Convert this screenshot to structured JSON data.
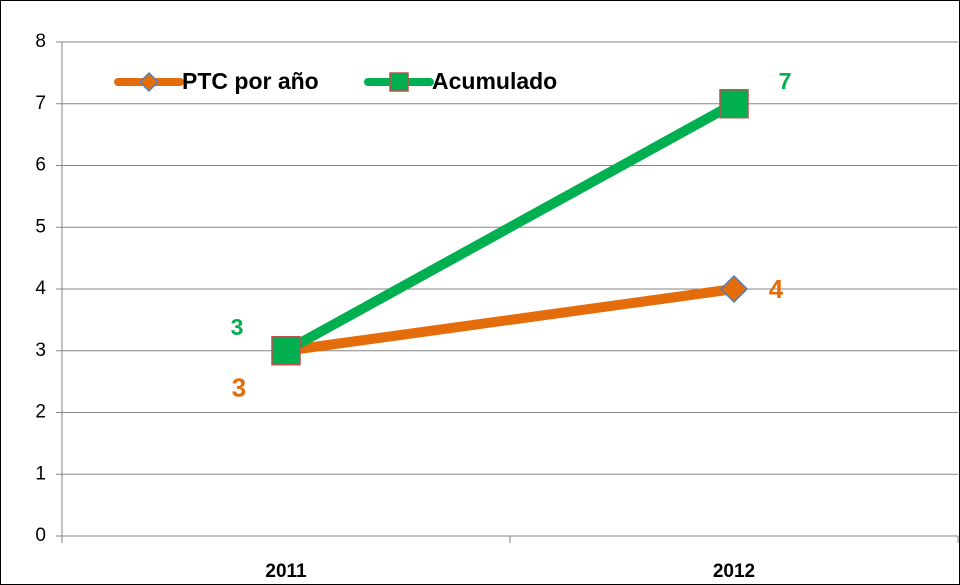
{
  "chart_data": {
    "type": "line",
    "categories": [
      "2011",
      "2012"
    ],
    "series": [
      {
        "name": "PTC por año",
        "color": "#e46c0a",
        "values": [
          3,
          4
        ]
      },
      {
        "name": "Acumulado",
        "color": "#00b050",
        "values": [
          3,
          7
        ]
      }
    ],
    "ylim": [
      0,
      8
    ],
    "yticks": [
      0,
      1,
      2,
      3,
      4,
      5,
      6,
      7,
      8
    ],
    "grid": true,
    "legend": "top-left"
  }
}
